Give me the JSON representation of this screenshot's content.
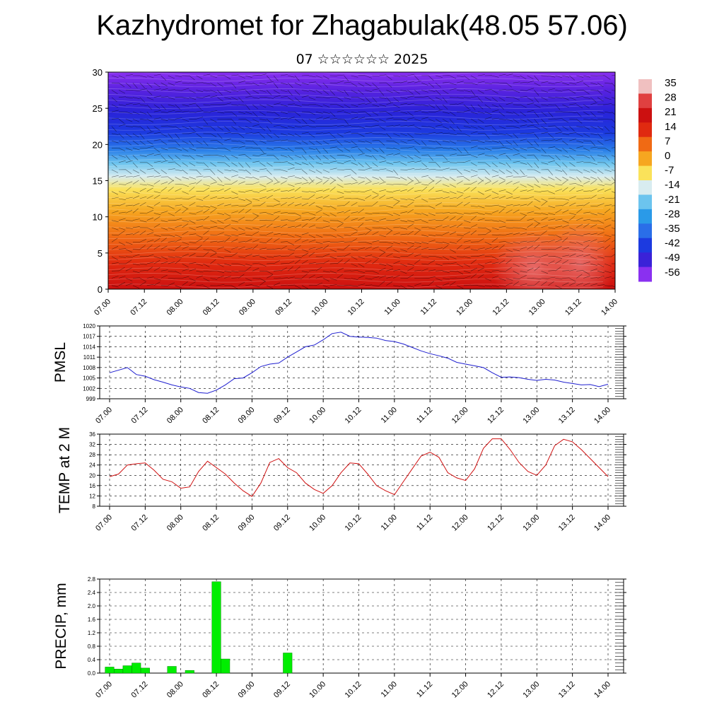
{
  "header": {
    "title": "Kazhydromet for Zhagabulak(48.05 57.06)",
    "subtitle": "07 ☆☆☆☆☆☆ 2025"
  },
  "colors": {
    "pressure_line": "#1f1fd0",
    "temperature_line": "#d01010",
    "precip_bar": "#00ee00",
    "precip_bar_edge": "#008800"
  },
  "colorbar": {
    "labels": [
      "35",
      "28",
      "21",
      "14",
      "7",
      "0",
      "-7",
      "-14",
      "-21",
      "-28",
      "-35",
      "-42",
      "-49",
      "-56"
    ]
  },
  "chart_data": [
    {
      "type": "heatmap",
      "title": "",
      "description_type": "cross-section temperature with wind barbs",
      "ylim": [
        0,
        30
      ],
      "ytick_labels": [
        "0",
        "5",
        "10",
        "15",
        "20",
        "25",
        "30"
      ],
      "xtick_labels": [
        "07.00",
        "07.12",
        "08.00",
        "08.12",
        "09.00",
        "09.12",
        "10.00",
        "10.12",
        "11.00",
        "11.12",
        "12.00",
        "12.12",
        "13.00",
        "13.12",
        "14.00"
      ],
      "color_scale": [
        35,
        -56
      ],
      "grid": false
    },
    {
      "type": "line",
      "ylabel": "PMSL",
      "ylim": [
        999,
        1020
      ],
      "ytick_labels": [
        "999",
        "1002",
        "1005",
        "1008",
        "1011",
        "1014",
        "1017",
        "1020"
      ],
      "xtick_labels": [
        "07.00",
        "07.12",
        "08.00",
        "08.12",
        "09.00",
        "09.12",
        "10.00",
        "10.12",
        "11.00",
        "11.12",
        "12.00",
        "12.12",
        "13.00",
        "13.12",
        "14.00"
      ],
      "grid": true,
      "x_hours": [
        0,
        6,
        9,
        12,
        15,
        18,
        21,
        24,
        27,
        30,
        33,
        36,
        39,
        42,
        45,
        48,
        51,
        54,
        57,
        60,
        63,
        66,
        69,
        72,
        75,
        78,
        81,
        84,
        87,
        90,
        93,
        96,
        99,
        102,
        105,
        108,
        111,
        114,
        117,
        120,
        123,
        126,
        129,
        132,
        135,
        138,
        141,
        144,
        147,
        150,
        153,
        156,
        159,
        162,
        165,
        168
      ],
      "values": [
        1006.5,
        1008.0,
        1006.0,
        1005.5,
        1004.5,
        1003.8,
        1003.0,
        1002.4,
        1002.0,
        1000.8,
        1000.6,
        1001.5,
        1003.0,
        1004.8,
        1005.0,
        1006.5,
        1008.3,
        1009.0,
        1009.3,
        1011.0,
        1012.5,
        1014.0,
        1014.5,
        1016.0,
        1017.8,
        1018.2,
        1017.0,
        1016.8,
        1016.7,
        1016.5,
        1015.8,
        1015.5,
        1014.8,
        1013.8,
        1012.8,
        1012.0,
        1011.4,
        1010.7,
        1009.5,
        1009.0,
        1008.5,
        1008.0,
        1006.5,
        1005.2,
        1005.3,
        1005.1,
        1004.6,
        1004.3,
        1004.6,
        1004.4,
        1003.8,
        1003.4,
        1003.0,
        1003.1,
        1002.5,
        1003.2
      ]
    },
    {
      "type": "line",
      "ylabel": "TEMP at 2 M",
      "ylim": [
        8,
        36
      ],
      "ytick_labels": [
        "8",
        "12",
        "16",
        "20",
        "24",
        "28",
        "32",
        "36"
      ],
      "xtick_labels": [
        "07.00",
        "07.12",
        "08.00",
        "08.12",
        "09.00",
        "09.12",
        "10.00",
        "10.12",
        "11.00",
        "11.12",
        "12.00",
        "12.12",
        "13.00",
        "13.12",
        "14.00"
      ],
      "grid": true,
      "x_hours": [
        0,
        3,
        6,
        9,
        12,
        15,
        18,
        21,
        24,
        27,
        30,
        33,
        36,
        39,
        42,
        45,
        48,
        51,
        54,
        57,
        60,
        63,
        66,
        69,
        72,
        75,
        78,
        81,
        84,
        87,
        90,
        93,
        96,
        99,
        102,
        105,
        108,
        111,
        114,
        117,
        120,
        123,
        126,
        129,
        132,
        135,
        138,
        141,
        144,
        147,
        150,
        153,
        156,
        159,
        162,
        165,
        168
      ],
      "values": [
        19.5,
        20.5,
        24.0,
        24.5,
        24.8,
        22.0,
        18.5,
        17.5,
        15.0,
        15.5,
        21.5,
        25.5,
        23.0,
        20.5,
        17.0,
        14.0,
        11.8,
        17.0,
        25.0,
        26.5,
        23.0,
        21.0,
        17.0,
        14.5,
        13.0,
        16.0,
        21.0,
        24.8,
        24.5,
        20.5,
        16.0,
        14.0,
        12.5,
        17.5,
        22.5,
        27.5,
        29.0,
        27.0,
        21.0,
        19.0,
        18.0,
        22.5,
        30.5,
        34.2,
        34.2,
        30.0,
        25.0,
        21.5,
        20.0,
        24.0,
        31.5,
        34.0,
        33.0,
        30.0,
        26.5,
        23.0,
        19.5
      ]
    },
    {
      "type": "bar",
      "ylabel": "PRECIP, mm",
      "ylim": [
        0,
        2.8
      ],
      "ytick_labels": [
        "0.0",
        "0.4",
        "0.8",
        "1.2",
        "1.6",
        "2.0",
        "2.4",
        "2.8"
      ],
      "xtick_labels": [
        "07.00",
        "07.12",
        "08.00",
        "08.12",
        "09.00",
        "09.12",
        "10.00",
        "10.12",
        "11.00",
        "11.12",
        "12.00",
        "12.12",
        "13.00",
        "13.12",
        "14.00"
      ],
      "grid": true,
      "x_hours": [
        0,
        3,
        6,
        9,
        12,
        15,
        21,
        27,
        36,
        39,
        60
      ],
      "values": [
        0.18,
        0.12,
        0.22,
        0.3,
        0.15,
        0.0,
        0.2,
        0.08,
        2.72,
        0.42,
        0.6
      ]
    }
  ]
}
